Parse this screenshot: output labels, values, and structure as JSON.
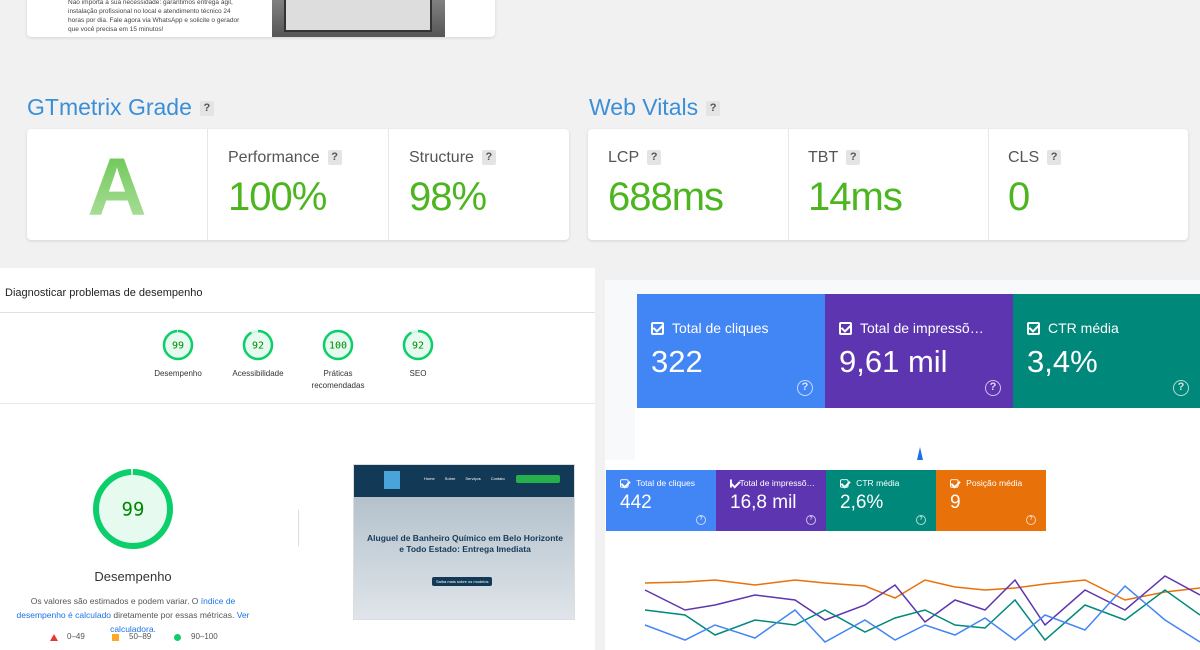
{
  "hero": {
    "text": "Não importa a sua necessidade: garantimos entrega ágil, instalação profissional no local e atendimento técnico 24 horas por dia. Fale agora via WhatsApp e solicite o gerador que você precisa em 15 minutos!"
  },
  "gtmetrix": {
    "title": "GTmetrix Grade",
    "help": "?",
    "grade": "A",
    "metrics": [
      {
        "label": "Performance",
        "help": "?",
        "value": "100%"
      },
      {
        "label": "Structure",
        "help": "?",
        "value": "98%"
      }
    ]
  },
  "web_vitals": {
    "title": "Web Vitals",
    "help": "?",
    "metrics": [
      {
        "label": "LCP",
        "help": "?",
        "value": "688ms"
      },
      {
        "label": "TBT",
        "help": "?",
        "value": "14ms"
      },
      {
        "label": "CLS",
        "help": "?",
        "value": "0"
      }
    ]
  },
  "lighthouse": {
    "title": "Diagnosticar problemas de desempenho",
    "scores": [
      {
        "value": 99,
        "label": "Desempenho"
      },
      {
        "value": 92,
        "label": "Acessibilidade"
      },
      {
        "value": 100,
        "label": "Práticas recomendadas"
      },
      {
        "value": 92,
        "label": "SEO"
      }
    ],
    "main": {
      "value": 99,
      "label": "Desempenho"
    },
    "note": {
      "text1": "Os valores são estimados e podem variar. O ",
      "link1": "índice de desempenho é calculado",
      "text2": " diretamente por essas métricas. ",
      "link2": "Ver calculadora."
    },
    "legend": [
      {
        "label": "0–49",
        "from": 0,
        "to": 49,
        "color": "#e53935"
      },
      {
        "label": "50–89",
        "from": 50,
        "to": 89,
        "color": "#ffa726"
      },
      {
        "label": "90–100",
        "from": 90,
        "to": 100,
        "color": "#0cce6b"
      }
    ],
    "preview": {
      "nav": [
        "Home",
        "Sobre",
        "Serviços",
        "Contato"
      ],
      "heading": "Aluguel de Banheiro Químico em Belo Horizonte e Todo Estado: Entrega Imediata",
      "button": "Saiba mais sobre os modelos"
    }
  },
  "search_console": {
    "large": [
      {
        "label": "Total de cliques",
        "value": "322",
        "help": "?",
        "color": "#4285f4"
      },
      {
        "label": "Total de impressõ…",
        "value": "9,61 mil",
        "help": "?",
        "color": "#5e35b1"
      },
      {
        "label": "CTR média",
        "value": "3,4%",
        "help": "?",
        "color": "#00897b"
      }
    ],
    "small": [
      {
        "label": "Total de cliques",
        "value": "442",
        "help": "?",
        "color": "#4285f4"
      },
      {
        "label": "Total de impressõ…",
        "value": "16,8 mil",
        "help": "?",
        "color": "#5e35b1"
      },
      {
        "label": "CTR média",
        "value": "2,6%",
        "help": "?",
        "color": "#00897b"
      },
      {
        "label": "Posição média",
        "value": "9",
        "help": "?",
        "color": "#e8710a"
      }
    ]
  }
}
